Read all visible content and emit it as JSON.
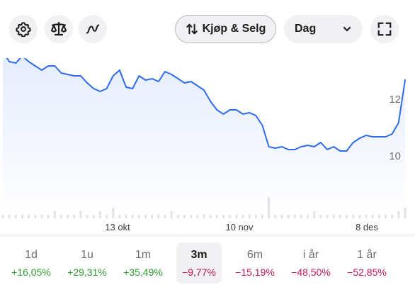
{
  "toolbar": {
    "settings_icon": "gear-icon",
    "compare_icon": "scale-icon",
    "indicator_icon": "squiggle-icon",
    "trade_label": "Kjøp & Selg",
    "trade_icon": "up-down-arrows-icon",
    "period_select": {
      "value": "Dag",
      "icon": "chevron-down-icon"
    },
    "fullscreen_icon": "expand-icon"
  },
  "chart_data": {
    "type": "line",
    "fill": "area-gradient",
    "line_color": "#2f6bed",
    "y_tick_labels": [
      "12",
      "10"
    ],
    "x_tick_labels": [
      "13 okt",
      "10 nov",
      "8 des"
    ],
    "values": [
      13.65,
      13.3,
      13.25,
      13.5,
      13.3,
      13.15,
      13.0,
      13.15,
      13.15,
      12.9,
      12.85,
      12.8,
      12.8,
      12.55,
      12.35,
      12.25,
      12.35,
      12.8,
      13.0,
      12.4,
      12.35,
      12.8,
      12.65,
      12.7,
      12.6,
      12.95,
      12.85,
      12.7,
      12.55,
      12.6,
      12.45,
      12.3,
      11.9,
      11.6,
      11.45,
      11.6,
      11.6,
      11.45,
      11.5,
      11.4,
      11.05,
      10.3,
      10.25,
      10.3,
      10.2,
      10.2,
      10.3,
      10.35,
      10.3,
      10.45,
      10.2,
      10.3,
      10.15,
      10.15,
      10.45,
      10.6,
      10.7,
      10.65,
      10.65,
      10.65,
      10.75,
      11.15,
      12.65
    ],
    "volume": [
      1,
      1,
      1,
      1,
      1,
      1,
      1,
      1,
      2,
      1,
      1,
      1,
      2,
      1,
      1,
      2,
      1,
      3,
      1,
      1,
      1,
      1,
      1,
      1,
      1,
      1,
      2,
      1,
      1,
      1,
      1,
      1,
      1,
      1,
      1,
      1,
      1,
      1,
      1,
      1,
      1,
      6,
      1,
      1,
      1,
      1,
      1,
      1,
      2,
      1,
      1,
      1,
      1,
      1,
      1,
      1,
      1,
      1,
      1,
      1,
      1,
      2,
      3
    ],
    "grid": false,
    "legend": "none"
  },
  "periods": [
    {
      "label": "1d",
      "change": "+16,05%",
      "trend": "pos",
      "active": false
    },
    {
      "label": "1u",
      "change": "+29,31%",
      "trend": "pos",
      "active": false
    },
    {
      "label": "1m",
      "change": "+35,49%",
      "trend": "pos",
      "active": false
    },
    {
      "label": "3m",
      "change": "−9,77%",
      "trend": "neg",
      "active": true
    },
    {
      "label": "6m",
      "change": "−15,19%",
      "trend": "neg",
      "active": false
    },
    {
      "label": "i år",
      "change": "−48,50%",
      "trend": "neg",
      "active": false
    },
    {
      "label": "1 år",
      "change": "−52,85%",
      "trend": "neg",
      "active": false
    }
  ]
}
